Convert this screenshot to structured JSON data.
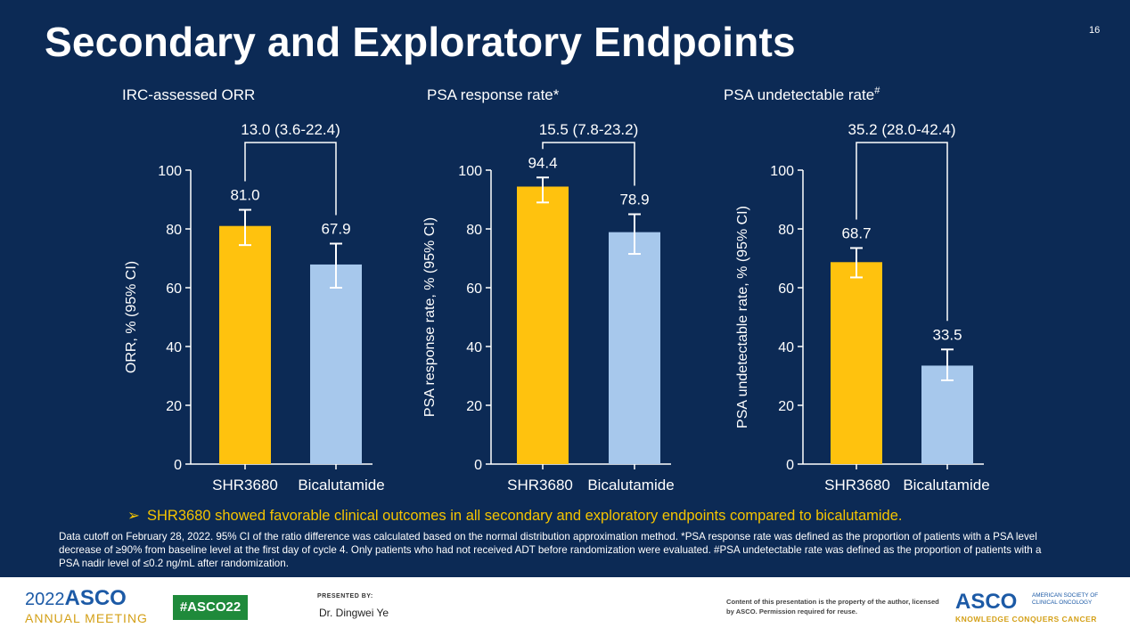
{
  "slide": {
    "title": "Secondary and Exploratory Endpoints",
    "page_number": "16"
  },
  "colors": {
    "background": "#0c2a55",
    "shr3680": "#ffc20e",
    "bicalutamide": "#a7c8ec",
    "bullet": "#f5c400"
  },
  "chart_data": [
    {
      "type": "bar",
      "title": "IRC-assessed ORR",
      "ylabel": "ORR, % (95% CI)",
      "categories": [
        "SHR3680",
        "Bicalutamide"
      ],
      "values": [
        81.0,
        67.9
      ],
      "value_labels": [
        "81.0",
        "67.9"
      ],
      "ci": [
        [
          74.5,
          86.5
        ],
        [
          60.0,
          75.0
        ]
      ],
      "difference": "13.0 (3.6-22.4)",
      "ylim": [
        0,
        100
      ],
      "yticks": [
        0,
        20,
        40,
        60,
        80,
        100
      ]
    },
    {
      "type": "bar",
      "title": "PSA response rate*",
      "ylabel": "PSA response rate, % (95% CI)",
      "categories": [
        "SHR3680",
        "Bicalutamide"
      ],
      "values": [
        94.4,
        78.9
      ],
      "value_labels": [
        "94.4",
        "78.9"
      ],
      "ci": [
        [
          89.0,
          97.5
        ],
        [
          71.5,
          85.0
        ]
      ],
      "difference": "15.5 (7.8-23.2)",
      "ylim": [
        0,
        100
      ],
      "yticks": [
        0,
        20,
        40,
        60,
        80,
        100
      ]
    },
    {
      "type": "bar",
      "title": "PSA undetectable rate",
      "title_superscript": "#",
      "ylabel": "PSA undetectable rate, % (95% CI)",
      "categories": [
        "SHR3680",
        "Bicalutamide"
      ],
      "values": [
        68.7,
        33.5
      ],
      "value_labels": [
        "68.7",
        "33.5"
      ],
      "ci": [
        [
          63.5,
          73.5
        ],
        [
          28.5,
          39.0
        ]
      ],
      "difference": "35.2 (28.0-42.4)",
      "ylim": [
        0,
        100
      ],
      "yticks": [
        0,
        20,
        40,
        60,
        80,
        100
      ]
    }
  ],
  "bullet": {
    "marker": "➢",
    "text": "SHR3680 showed favorable clinical outcomes in all secondary and exploratory endpoints compared to bicalutamide."
  },
  "footnote": "Data cutoff on February 28, 2022. 95% CI of the ratio difference was calculated based on the normal distribution approximation method. *PSA response rate was defined as the proportion of patients with a PSA level decrease of ≥90% from baseline level at the first day of cycle 4. Only patients who had not received ADT before randomization were evaluated. #PSA undetectable rate was defined as the proportion of patients with a PSA nadir level of ≤0.2 ng/mL after randomization.",
  "footer": {
    "year": "2022",
    "asco": "ASCO",
    "meeting": "ANNUAL MEETING",
    "hashtag": "#ASCO22",
    "presented_by": "PRESENTED BY:",
    "presenter": "Dr. Dingwei Ye",
    "content_note": "Content of this presentation is the property of the author, licensed by ASCO. Permission required for reuse.",
    "asco_logo": "ASCO",
    "society": "AMERICAN SOCIETY OF CLINICAL ONCOLOGY",
    "tagline": "KNOWLEDGE CONQUERS CANCER"
  }
}
